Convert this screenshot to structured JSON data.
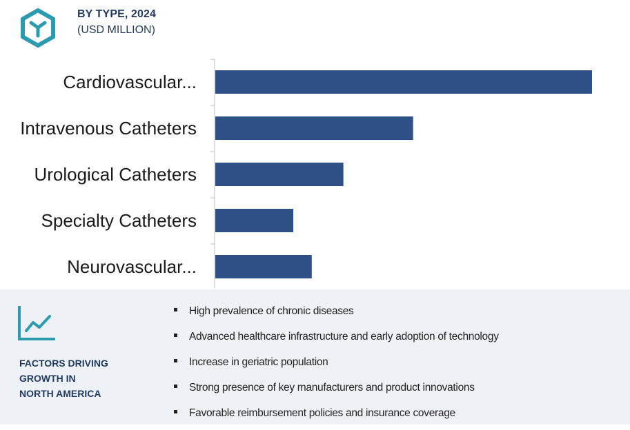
{
  "header": {
    "title": "BY TYPE, 2024",
    "subtitle": "(USD MILLION)",
    "icon": "hexagon-logo-icon",
    "accent_color": "#2b9bb0"
  },
  "chart_data": {
    "type": "bar",
    "orientation": "horizontal",
    "categories": [
      "Cardiovascular...",
      "Intravenous Catheters",
      "Urological Catheters",
      "Specialty Catheters",
      "Neurovascular..."
    ],
    "values": [
      100,
      52.5,
      34,
      20.7,
      25.6
    ],
    "title": "",
    "xlabel": "",
    "ylabel": "",
    "xlim": [
      0,
      100
    ],
    "grid": false,
    "legend": "none",
    "bar_color": "#2e5086",
    "label_color": "#1a1a1a"
  },
  "factors": {
    "icon": "trend-line-icon",
    "title_lines": [
      "FACTORS DRIVING",
      "GROWTH IN",
      "NORTH AMERICA"
    ],
    "items": [
      "High prevalence of chronic diseases",
      "Advanced healthcare infrastructure and early adoption of technology",
      "Increase in geriatric population",
      "Strong presence of key manufacturers and product innovations",
      "Favorable reimbursement policies and insurance coverage"
    ]
  }
}
